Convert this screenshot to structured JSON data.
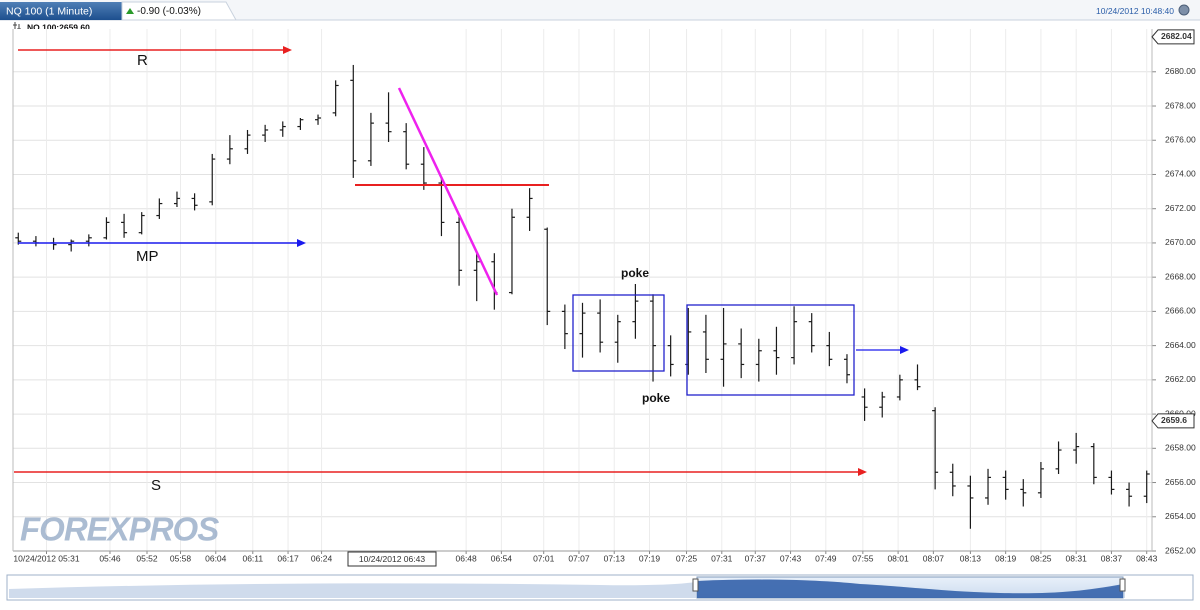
{
  "chart_data": {
    "type": "ohlc",
    "title": "NQ 100 (1 Minute)",
    "change": "-0.90 (-0.03%)",
    "timestamp": "10/24/2012 10:48:40",
    "legend_label": "NQ 100:2659.60",
    "watermark": "FOREXPROS",
    "crosshair_label": "10/24/2012 06:43",
    "grid": true,
    "series": [
      {
        "name": "NQ 100",
        "color": "#1a1a1a",
        "open": [
          2670.3,
          2670.1,
          2670.0,
          2669.9,
          2670.1,
          2670.3,
          2671.2,
          2670.6,
          2671.6,
          2672.3,
          2672.6,
          2672.4,
          2674.9,
          2675.5,
          2676.3,
          2676.6,
          2676.8,
          2677.2,
          2677.6,
          2679.5,
          2674.8,
          2677.0,
          2676.5,
          2674.6,
          2673.5,
          2671.2,
          2668.4,
          2668.9,
          2667.1,
          2671.5,
          2670.8,
          2666.0,
          2664.7,
          2665.9,
          2664.2,
          2665.4,
          2666.6,
          2664.0,
          2662.9,
          2664.8,
          2663.2,
          2664.1,
          2662.9,
          2663.7,
          2663.3,
          2665.4,
          2664.0,
          2663.2,
          2661.0,
          2660.4,
          2661.0,
          2662.0,
          2660.2,
          2656.6,
          2655.8,
          2655.1,
          2656.3,
          2655.6,
          2655.4,
          2656.8,
          2657.9,
          2658.1,
          2656.3,
          2655.6,
          2655.2
        ],
        "high": [
          2670.6,
          2670.4,
          2670.3,
          2670.2,
          2670.5,
          2671.5,
          2671.7,
          2671.8,
          2672.6,
          2673.0,
          2672.9,
          2675.2,
          2676.3,
          2676.6,
          2676.9,
          2677.1,
          2677.3,
          2677.5,
          2679.5,
          2680.4,
          2677.6,
          2678.8,
          2677.0,
          2675.6,
          2673.8,
          2671.6,
          2669.5,
          2669.4,
          2672.0,
          2673.2,
          2670.9,
          2666.4,
          2666.5,
          2666.7,
          2665.8,
          2667.6,
          2667.0,
          2664.6,
          2666.2,
          2665.8,
          2666.2,
          2665.0,
          2664.4,
          2665.1,
          2666.3,
          2665.9,
          2664.8,
          2663.5,
          2661.5,
          2661.3,
          2662.3,
          2662.9,
          2660.4,
          2657.1,
          2656.4,
          2656.8,
          2656.7,
          2656.2,
          2657.2,
          2658.4,
          2658.9,
          2658.3,
          2656.7,
          2656.0,
          2656.7
        ],
        "low": [
          2669.9,
          2669.8,
          2669.6,
          2669.5,
          2669.8,
          2670.2,
          2670.3,
          2670.5,
          2671.4,
          2672.1,
          2671.9,
          2672.2,
          2674.6,
          2675.2,
          2675.9,
          2676.2,
          2676.6,
          2676.9,
          2677.4,
          2673.8,
          2674.5,
          2675.9,
          2674.3,
          2673.1,
          2670.4,
          2667.5,
          2666.6,
          2666.1,
          2667.0,
          2670.7,
          2665.2,
          2663.8,
          2663.3,
          2663.6,
          2663.0,
          2664.4,
          2661.9,
          2662.2,
          2662.3,
          2662.4,
          2661.6,
          2662.1,
          2661.9,
          2662.3,
          2662.9,
          2663.6,
          2662.8,
          2661.8,
          2659.6,
          2659.8,
          2660.8,
          2661.4,
          2655.6,
          2655.2,
          2653.3,
          2654.7,
          2655.0,
          2654.6,
          2655.1,
          2656.5,
          2657.1,
          2655.9,
          2655.3,
          2654.6,
          2654.8
        ],
        "close": [
          2670.1,
          2670.0,
          2669.9,
          2670.1,
          2670.3,
          2671.2,
          2670.6,
          2671.6,
          2672.3,
          2672.6,
          2672.2,
          2674.9,
          2675.5,
          2676.3,
          2676.6,
          2676.8,
          2677.2,
          2677.3,
          2679.2,
          2674.8,
          2677.0,
          2676.5,
          2674.6,
          2673.5,
          2671.2,
          2668.4,
          2668.9,
          2667.1,
          2671.5,
          2672.6,
          2666.0,
          2664.7,
          2665.9,
          2664.2,
          2665.4,
          2666.6,
          2664.0,
          2662.9,
          2664.8,
          2663.2,
          2664.1,
          2662.9,
          2663.7,
          2663.3,
          2665.4,
          2664.0,
          2663.2,
          2662.3,
          2660.4,
          2661.0,
          2662.0,
          2661.6,
          2656.6,
          2655.8,
          2655.1,
          2656.3,
          2655.6,
          2655.4,
          2656.8,
          2657.9,
          2658.1,
          2656.3,
          2655.6,
          2655.2,
          2656.5
        ]
      }
    ],
    "xlim": [
      -0.3,
      64.3
    ],
    "xticks": [
      {
        "value": 1.6,
        "label": "10/24/2012 05:31"
      },
      {
        "value": 5.2,
        "label": "05:46"
      },
      {
        "value": 7.3,
        "label": "05:52"
      },
      {
        "value": 9.2,
        "label": "05:58"
      },
      {
        "value": 11.2,
        "label": "06:04"
      },
      {
        "value": 13.3,
        "label": "06:11"
      },
      {
        "value": 15.3,
        "label": "06:17"
      },
      {
        "value": 17.2,
        "label": "06:24"
      },
      {
        "value": 25.4,
        "label": "06:48"
      },
      {
        "value": 27.4,
        "label": "06:54"
      },
      {
        "value": 29.8,
        "label": "07:01"
      },
      {
        "value": 31.8,
        "label": "07:07"
      },
      {
        "value": 33.8,
        "label": "07:13"
      },
      {
        "value": 35.8,
        "label": "07:19"
      },
      {
        "value": 37.9,
        "label": "07:25"
      },
      {
        "value": 39.9,
        "label": "07:31"
      },
      {
        "value": 41.8,
        "label": "07:37"
      },
      {
        "value": 43.8,
        "label": "07:43"
      },
      {
        "value": 45.8,
        "label": "07:49"
      },
      {
        "value": 47.9,
        "label": "07:55"
      },
      {
        "value": 49.9,
        "label": "08:01"
      },
      {
        "value": 51.9,
        "label": "08:07"
      },
      {
        "value": 54.0,
        "label": "08:13"
      },
      {
        "value": 56.0,
        "label": "08:19"
      },
      {
        "value": 58.0,
        "label": "08:25"
      },
      {
        "value": 60.0,
        "label": "08:31"
      },
      {
        "value": 62.0,
        "label": "08:37"
      },
      {
        "value": 64,
        "label": "08:43"
      }
    ],
    "ylim": [
      2652,
      2682.5
    ],
    "yticks": [
      {
        "value": 2652,
        "label": "2652.00"
      },
      {
        "value": 2654,
        "label": "2654.00"
      },
      {
        "value": 2656,
        "label": "2656.00"
      },
      {
        "value": 2658,
        "label": "2658.00"
      },
      {
        "value": 2660,
        "label": "2660.00"
      },
      {
        "value": 2662,
        "label": "2662.00"
      },
      {
        "value": 2664,
        "label": "2664.00"
      },
      {
        "value": 2666,
        "label": "2666.00"
      },
      {
        "value": 2668,
        "label": "2668.00"
      },
      {
        "value": 2670,
        "label": "2670.00"
      },
      {
        "value": 2672,
        "label": "2672.00"
      },
      {
        "value": 2674,
        "label": "2674.00"
      },
      {
        "value": 2676,
        "label": "2676.00"
      },
      {
        "value": 2678,
        "label": "2678.00"
      },
      {
        "value": 2680,
        "label": "2680.00"
      }
    ],
    "price_markers": [
      2682.04,
      2659.6
    ],
    "annotations": [
      "R",
      "MP",
      "S",
      "poke",
      "poke"
    ]
  }
}
